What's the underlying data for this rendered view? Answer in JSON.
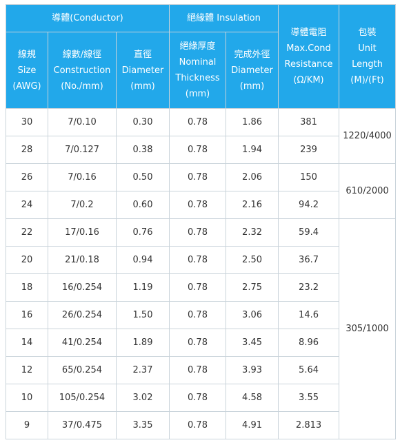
{
  "header": {
    "conductor": "導體(Conductor)",
    "insulation": "絕緣體 Insulation",
    "max_resistance": [
      "導體電阻",
      "Max.Cond",
      "Resistance",
      "(Ω/KM)"
    ],
    "unit_length": [
      "包裝",
      "Unit",
      "Length",
      "(M)/(Ft)"
    ],
    "size": [
      "線規",
      "Size",
      "(AWG)"
    ],
    "construction": [
      "線數/線徑",
      "Construction",
      "(No./mm)"
    ],
    "diameter": [
      "直徑",
      "Diameter",
      "(mm)"
    ],
    "nominal_thickness": [
      "絕緣厚度",
      "Nominal",
      "Thickness",
      "(mm)"
    ],
    "finished_diameter": [
      "完成外徑",
      "Diameter",
      "(mm)"
    ]
  },
  "rows": [
    {
      "size": "30",
      "construction": "7/0.10",
      "diameter": "0.30",
      "thickness": "0.78",
      "od": "1.86",
      "resistance": "381"
    },
    {
      "size": "28",
      "construction": "7/0.127",
      "diameter": "0.38",
      "thickness": "0.78",
      "od": "1.94",
      "resistance": "239"
    },
    {
      "size": "26",
      "construction": "7/0.16",
      "diameter": "0.50",
      "thickness": "0.78",
      "od": "2.06",
      "resistance": "150"
    },
    {
      "size": "24",
      "construction": "7/0.2",
      "diameter": "0.60",
      "thickness": "0.78",
      "od": "2.16",
      "resistance": "94.2"
    },
    {
      "size": "22",
      "construction": "17/0.16",
      "diameter": "0.76",
      "thickness": "0.78",
      "od": "2.32",
      "resistance": "59.4"
    },
    {
      "size": "20",
      "construction": "21/0.18",
      "diameter": "0.94",
      "thickness": "0.78",
      "od": "2.50",
      "resistance": "36.7"
    },
    {
      "size": "18",
      "construction": "16/0.254",
      "diameter": "1.19",
      "thickness": "0.78",
      "od": "2.75",
      "resistance": "23.2"
    },
    {
      "size": "16",
      "construction": "26/0.254",
      "diameter": "1.50",
      "thickness": "0.78",
      "od": "3.06",
      "resistance": "14.6"
    },
    {
      "size": "14",
      "construction": "41/0.254",
      "diameter": "1.89",
      "thickness": "0.78",
      "od": "3.45",
      "resistance": "8.96"
    },
    {
      "size": "12",
      "construction": "65/0.254",
      "diameter": "2.37",
      "thickness": "0.78",
      "od": "3.93",
      "resistance": "5.64"
    },
    {
      "size": "10",
      "construction": "105/0.254",
      "diameter": "3.02",
      "thickness": "0.78",
      "od": "4.58",
      "resistance": "3.55"
    },
    {
      "size": "9",
      "construction": "37/0.475",
      "diameter": "3.35",
      "thickness": "0.78",
      "od": "4.91",
      "resistance": "2.813"
    }
  ],
  "packaging": [
    "1220/4000",
    "610/2000",
    "305/1000"
  ],
  "colors": {
    "header_bg": "#22a8ea",
    "header_text": "#ffffff",
    "border": "#c9d3da",
    "cell_text": "#333333"
  }
}
